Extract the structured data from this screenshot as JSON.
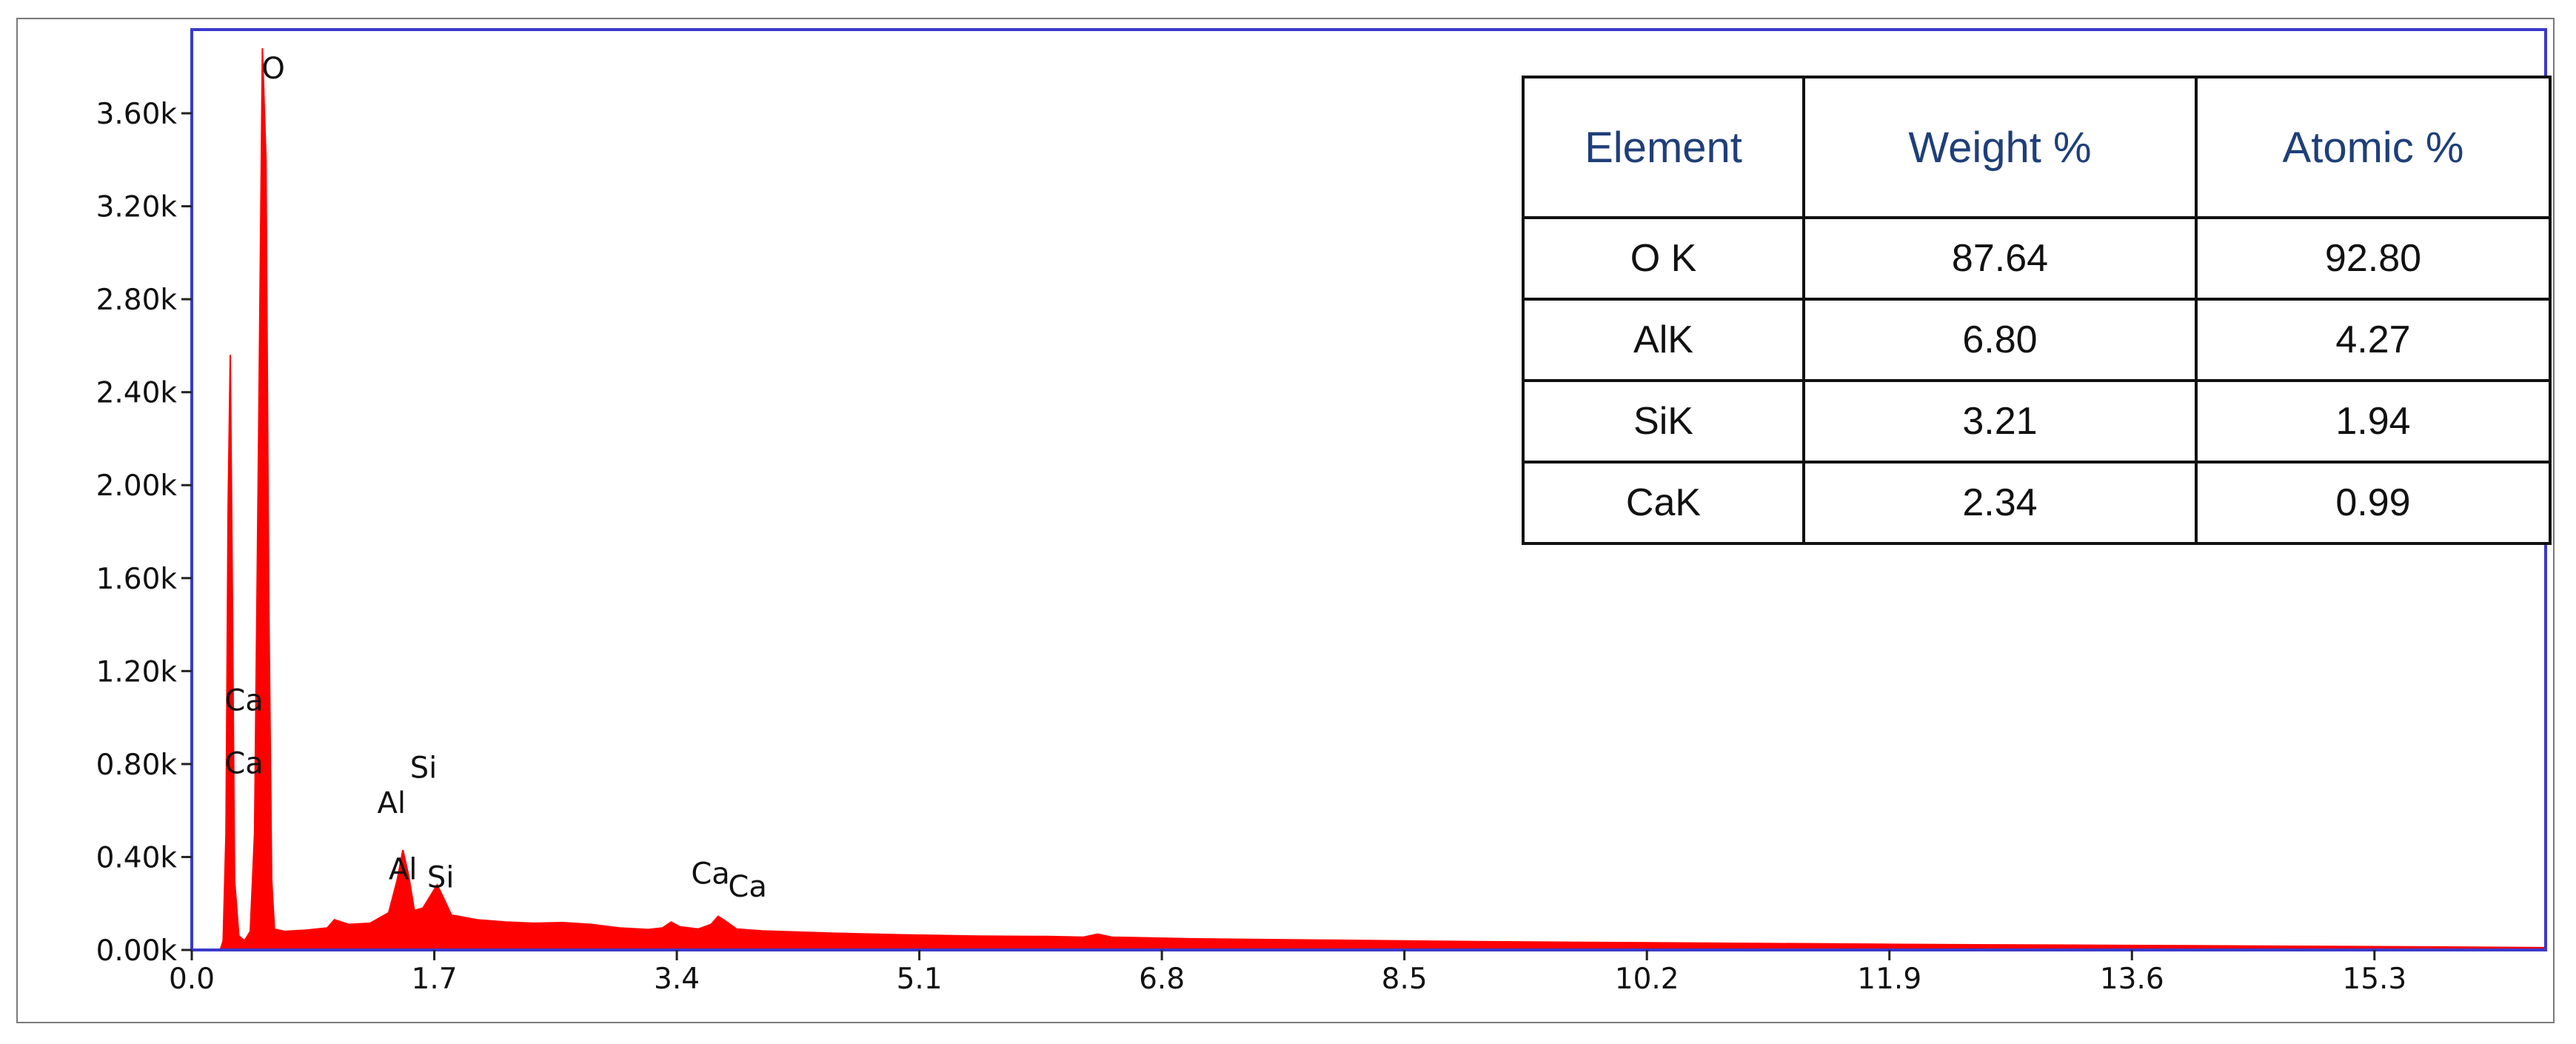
{
  "chart_data": {
    "type": "area",
    "title": "",
    "xlabel": "",
    "ylabel": "",
    "xlim": [
      0.0,
      16.5
    ],
    "ylim": [
      0,
      3960
    ],
    "x_ticks": [
      0.0,
      1.7,
      3.4,
      5.1,
      6.8,
      8.5,
      10.2,
      11.9,
      13.6,
      15.3
    ],
    "x_tick_labels": [
      "0.0",
      "1.7",
      "3.4",
      "5.1",
      "6.8",
      "8.5",
      "10.2",
      "11.9",
      "13.6",
      "15.3"
    ],
    "y_ticks": [
      0,
      400,
      800,
      1200,
      1600,
      2000,
      2400,
      2800,
      3200,
      3600
    ],
    "y_tick_labels": [
      "0.00k",
      "0.40k",
      "0.80k",
      "1.20k",
      "1.60k",
      "2.00k",
      "2.40k",
      "2.80k",
      "3.20k",
      "3.60k"
    ],
    "grid": false,
    "color": "#ff0000",
    "series": [
      {
        "values": [
          [
            0.2,
            0
          ],
          [
            0.22,
            40
          ],
          [
            0.24,
            500
          ],
          [
            0.255,
            1900
          ],
          [
            0.27,
            2560
          ],
          [
            0.285,
            1500
          ],
          [
            0.3,
            300
          ],
          [
            0.33,
            60
          ],
          [
            0.37,
            40
          ],
          [
            0.41,
            80
          ],
          [
            0.44,
            500
          ],
          [
            0.47,
            2300
          ],
          [
            0.495,
            3880
          ],
          [
            0.52,
            3400
          ],
          [
            0.54,
            1500
          ],
          [
            0.56,
            300
          ],
          [
            0.58,
            90
          ],
          [
            0.65,
            80
          ],
          [
            0.8,
            85
          ],
          [
            0.95,
            95
          ],
          [
            1.0,
            130
          ],
          [
            1.1,
            110
          ],
          [
            1.25,
            115
          ],
          [
            1.38,
            160
          ],
          [
            1.44,
            300
          ],
          [
            1.48,
            430
          ],
          [
            1.52,
            320
          ],
          [
            1.56,
            170
          ],
          [
            1.62,
            180
          ],
          [
            1.68,
            240
          ],
          [
            1.72,
            280
          ],
          [
            1.76,
            230
          ],
          [
            1.82,
            150
          ],
          [
            2.0,
            130
          ],
          [
            2.2,
            120
          ],
          [
            2.4,
            115
          ],
          [
            2.6,
            118
          ],
          [
            2.8,
            110
          ],
          [
            3.0,
            95
          ],
          [
            3.2,
            88
          ],
          [
            3.3,
            95
          ],
          [
            3.36,
            120
          ],
          [
            3.42,
            100
          ],
          [
            3.55,
            90
          ],
          [
            3.64,
            110
          ],
          [
            3.69,
            145
          ],
          [
            3.74,
            125
          ],
          [
            3.82,
            90
          ],
          [
            4.0,
            82
          ],
          [
            4.5,
            72
          ],
          [
            5.0,
            65
          ],
          [
            5.5,
            60
          ],
          [
            6.0,
            58
          ],
          [
            6.25,
            55
          ],
          [
            6.35,
            68
          ],
          [
            6.45,
            55
          ],
          [
            7.0,
            48
          ],
          [
            8.0,
            42
          ],
          [
            9.0,
            36
          ],
          [
            10.0,
            32
          ],
          [
            11.0,
            28
          ],
          [
            12.0,
            24
          ],
          [
            13.0,
            21
          ],
          [
            14.0,
            18
          ],
          [
            15.0,
            15
          ],
          [
            16.0,
            12
          ],
          [
            16.5,
            10
          ]
        ]
      }
    ],
    "annotations": [
      {
        "text": "O",
        "x": 0.49,
        "y": 3750
      },
      {
        "text": "Ca",
        "x": 0.23,
        "y": 1030
      },
      {
        "text": "Ca",
        "x": 0.23,
        "y": 760
      },
      {
        "text": "Al",
        "x": 1.3,
        "y": 590
      },
      {
        "text": "Si",
        "x": 1.53,
        "y": 740
      },
      {
        "text": "Al",
        "x": 1.38,
        "y": 305
      },
      {
        "text": "Si",
        "x": 1.65,
        "y": 270
      },
      {
        "text": "Ca",
        "x": 3.5,
        "y": 285
      },
      {
        "text": "Ca",
        "x": 3.76,
        "y": 230
      }
    ]
  },
  "table": {
    "headers": [
      "Element",
      "Weight %",
      "Atomic %"
    ],
    "rows": [
      [
        "O K",
        "87.64",
        "92.80"
      ],
      [
        "AlK",
        "6.80",
        "4.27"
      ],
      [
        "SiK",
        "3.21",
        "1.94"
      ],
      [
        "CaK",
        "2.34",
        "0.99"
      ]
    ]
  },
  "colors": {
    "spectrum": "#ff0000",
    "plot_border": "#3a3acc",
    "frame_border": "#7a7a7a",
    "table_header_text": "#1f3f7a"
  }
}
